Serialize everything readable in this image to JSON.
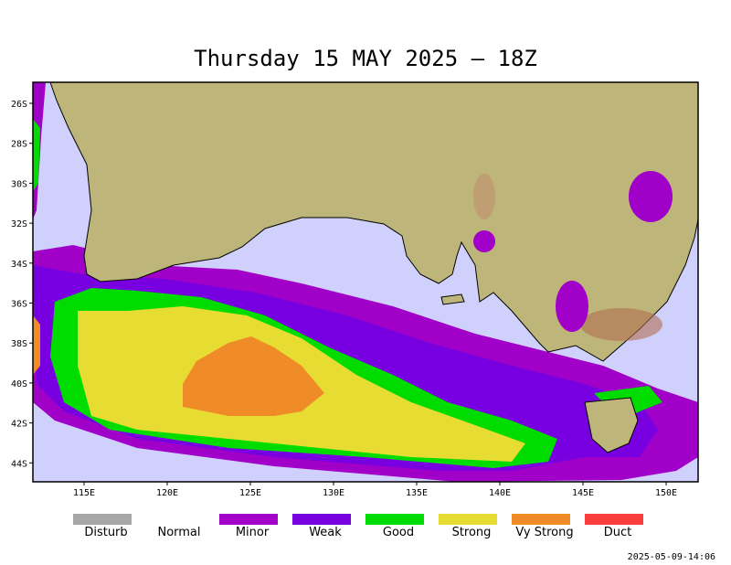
{
  "title": "Thursday 15 MAY 2025 — 18Z",
  "latitude_labels": [
    "26S",
    "28S",
    "30S",
    "32S",
    "34S",
    "36S",
    "38S",
    "40S",
    "42S",
    "44S"
  ],
  "longitude_labels": [
    "115E",
    "120E",
    "125E",
    "130E",
    "135E",
    "140E",
    "145E",
    "150E"
  ],
  "legend": [
    {
      "label": "Disturb",
      "color": "#a8a8a8"
    },
    {
      "label": "Normal"
    },
    {
      "label": "Minor",
      "color": "#a000c8"
    },
    {
      "label": "Weak",
      "color": "#7800e0"
    },
    {
      "label": "Good",
      "color": "#00dc00"
    },
    {
      "label": "Strong",
      "color": "#e6dc32"
    },
    {
      "label": "Vy Strong",
      "color": "#f08c28"
    },
    {
      "label": "Duct",
      "color": "#fa3c3c"
    }
  ],
  "timestamp": "2025-05-09-14:06"
}
